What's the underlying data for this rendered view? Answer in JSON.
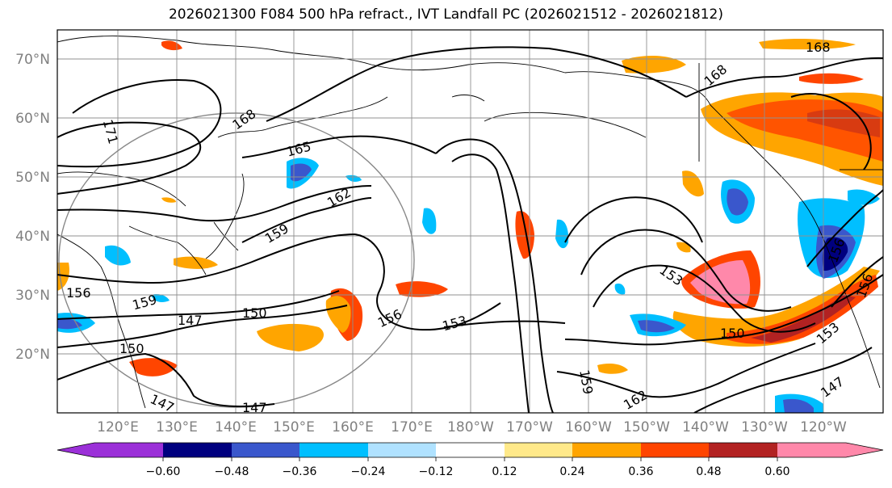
{
  "title": "2026021300 F084 500 hPa refract., IVT Landfall PC (2026021512 - 2026021812)",
  "lat_labels": [
    "70°N",
    "60°N",
    "50°N",
    "40°N",
    "30°N",
    "20°N"
  ],
  "lon_labels": [
    "120°E",
    "130°E",
    "140°E",
    "150°E",
    "160°E",
    "170°E",
    "180°W",
    "170°W",
    "160°W",
    "150°W",
    "140°W",
    "130°W",
    "120°W"
  ],
  "contour_labels": [
    "168",
    "168",
    "168",
    "171",
    "165",
    "162",
    "159",
    "156",
    "159",
    "147",
    "150",
    "150",
    "147",
    "147",
    "150",
    "153",
    "156",
    "153",
    "159",
    "162",
    "150",
    "147",
    "153",
    "156",
    "156"
  ],
  "colorbar": {
    "colors": [
      "#9b30d8",
      "#00007f",
      "#3a57cc",
      "#00bfff",
      "#b0e2ff",
      "#ffffff",
      "#ffe98a",
      "#ffa500",
      "#ff4500",
      "#b22222",
      "#ff88aa"
    ],
    "tick_labels": [
      "−0.60",
      "−0.48",
      "−0.36",
      "−0.24",
      "−0.12",
      "0.12",
      "0.24",
      "0.36",
      "0.48",
      "0.60"
    ]
  }
}
